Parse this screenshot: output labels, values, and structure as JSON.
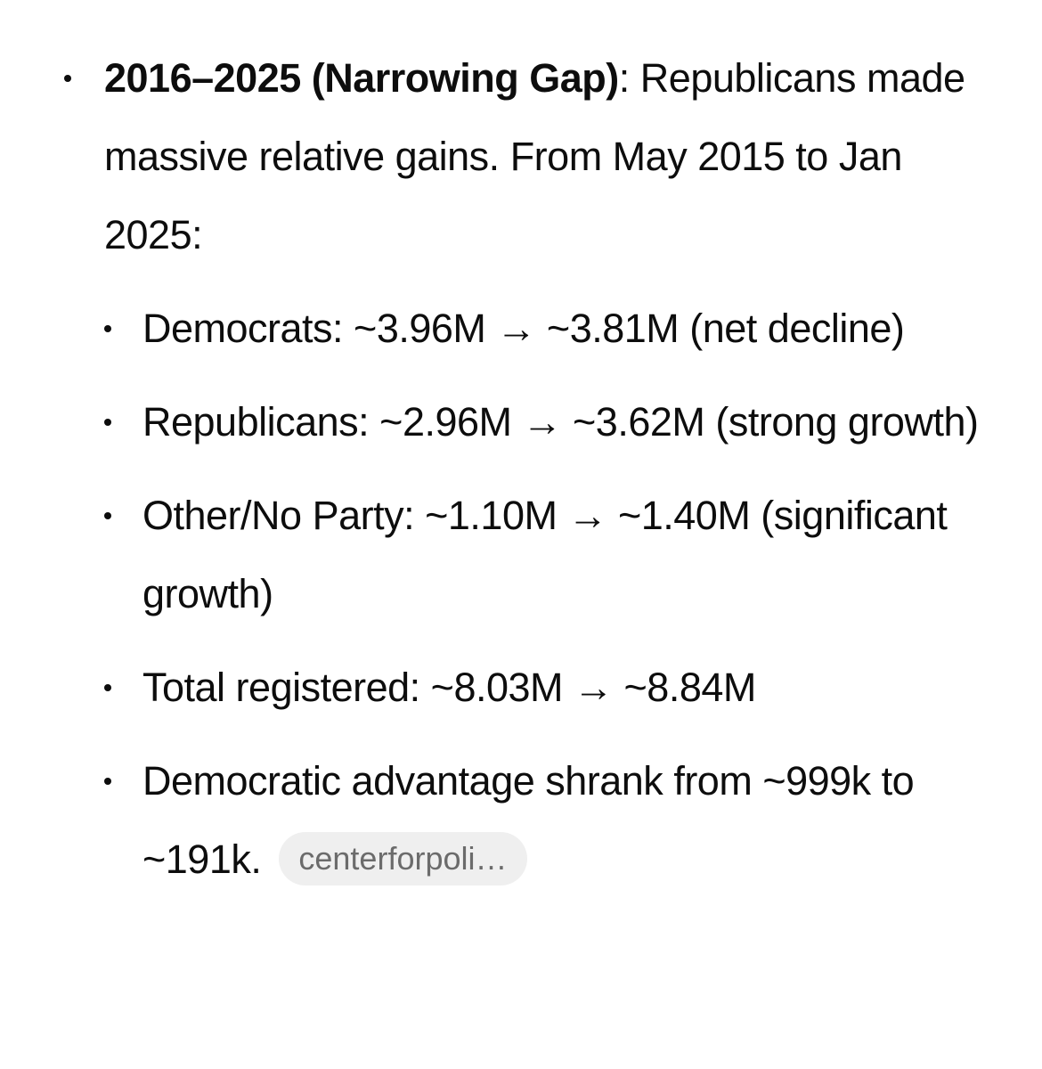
{
  "item": {
    "heading": "2016–2025 (Narrowing Gap)",
    "separator": ":",
    "text": "Republicans made massive relative gains. From May 2015 to Jan 2025:",
    "subitems": [
      "Democrats: ~3.96M → ~3.81M (net decline)",
      "Republicans: ~2.96M → ~3.62M (strong growth)",
      "Other/No Party: ~1.10M → ~1.40M (significant growth)",
      "Total registered: ~8.03M → ~8.84M",
      "Democratic advantage shrank from ~999k to ~191k."
    ],
    "citation": "centerforpoli…"
  }
}
